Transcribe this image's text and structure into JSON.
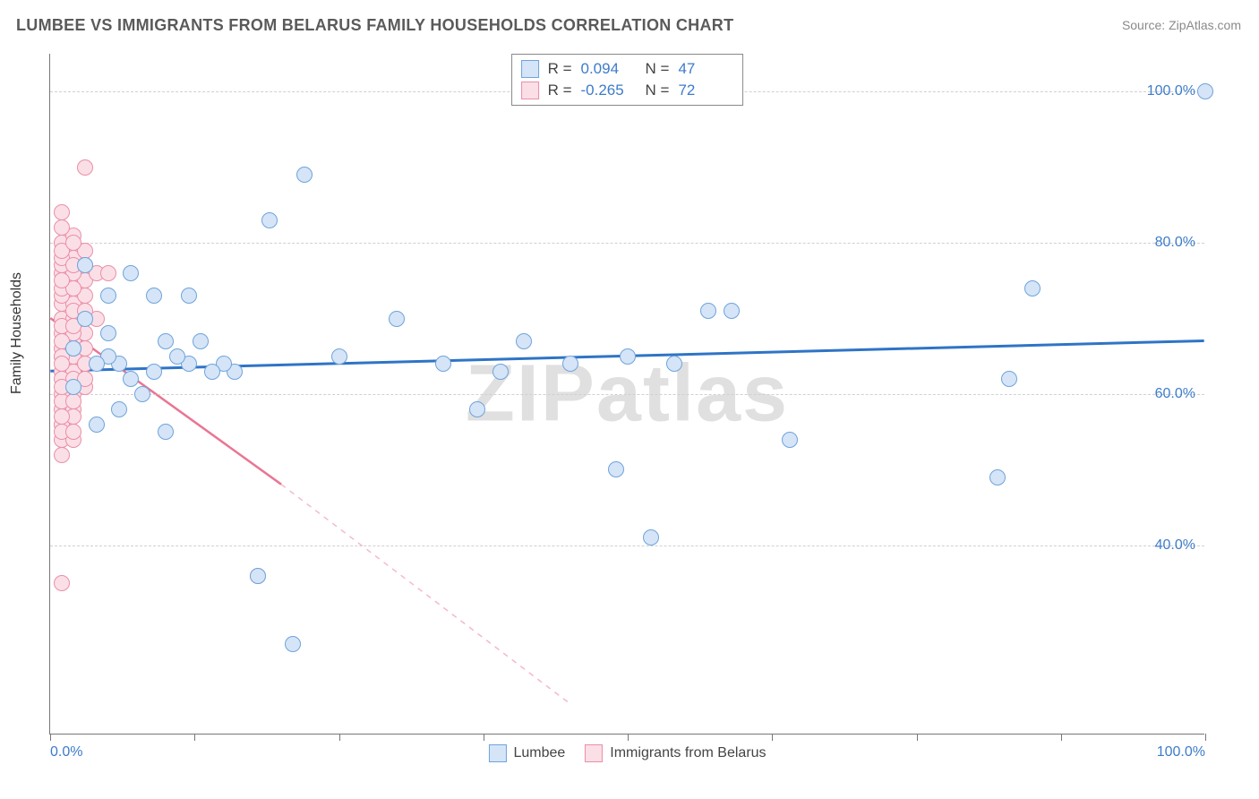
{
  "title": "LUMBEE VS IMMIGRANTS FROM BELARUS FAMILY HOUSEHOLDS CORRELATION CHART",
  "source_prefix": "Source: ",
  "source_name": "ZipAtlas.com",
  "ylabel": "Family Households",
  "watermark": "ZIPatlas",
  "chart": {
    "type": "scatter",
    "xlim": [
      0,
      100
    ],
    "ylim": [
      15,
      105
    ],
    "yticks": [
      40,
      60,
      80,
      100
    ],
    "ytick_labels": [
      "40.0%",
      "60.0%",
      "80.0%",
      "100.0%"
    ],
    "xticks": [
      0,
      12.5,
      25,
      37.5,
      50,
      62.5,
      75,
      87.5,
      100
    ],
    "xtick_labels_shown": {
      "0": "0.0%",
      "100": "100.0%"
    },
    "background_color": "#ffffff",
    "grid_color": "#d0d0d0",
    "marker_radius": 9,
    "marker_stroke_width": 1.5,
    "series": {
      "lumbee": {
        "label": "Lumbee",
        "fill": "#d5e5f7",
        "stroke": "#6fa3db",
        "R": "0.094",
        "N": "47",
        "trend": {
          "x1": 0,
          "y1": 63,
          "x2": 100,
          "y2": 67,
          "color": "#2f74c6",
          "width": 3,
          "dash": null
        },
        "points": [
          [
            100,
            100
          ],
          [
            85,
            74
          ],
          [
            83,
            62
          ],
          [
            82,
            49
          ],
          [
            64,
            54
          ],
          [
            57,
            71
          ],
          [
            59,
            71
          ],
          [
            54,
            64
          ],
          [
            5,
            68
          ],
          [
            50,
            65
          ],
          [
            52,
            41
          ],
          [
            49,
            50
          ],
          [
            41,
            67
          ],
          [
            39,
            63
          ],
          [
            34,
            64
          ],
          [
            30,
            70
          ],
          [
            25,
            65
          ],
          [
            21,
            27
          ],
          [
            19,
            83
          ],
          [
            22,
            89
          ],
          [
            18,
            36
          ],
          [
            16,
            63
          ],
          [
            15,
            64
          ],
          [
            14,
            63
          ],
          [
            13,
            67
          ],
          [
            12,
            73
          ],
          [
            12,
            64
          ],
          [
            11,
            65
          ],
          [
            10,
            55
          ],
          [
            10,
            67
          ],
          [
            9,
            73
          ],
          [
            9,
            63
          ],
          [
            8,
            60
          ],
          [
            7,
            62
          ],
          [
            7,
            76
          ],
          [
            6,
            58
          ],
          [
            6,
            64
          ],
          [
            5,
            73
          ],
          [
            5,
            65
          ],
          [
            4,
            64
          ],
          [
            4,
            56
          ],
          [
            3,
            70
          ],
          [
            3,
            77
          ],
          [
            2,
            61
          ],
          [
            2,
            66
          ],
          [
            37,
            58
          ],
          [
            45,
            64
          ]
        ]
      },
      "belarus": {
        "label": "Immigrants from Belarus",
        "fill": "#fbdfe6",
        "stroke": "#ea8fa8",
        "R": "-0.265",
        "N": "72",
        "trend_solid": {
          "x1": 0,
          "y1": 70,
          "x2": 20,
          "y2": 48,
          "color": "#e97693",
          "width": 2.5
        },
        "trend_dashed": {
          "x1": 20,
          "y1": 48,
          "x2": 45,
          "y2": 19,
          "color": "#f5b9c7",
          "width": 1.5,
          "dash": "6,6"
        },
        "points": [
          [
            1,
            35
          ],
          [
            18,
            36
          ],
          [
            1,
            54
          ],
          [
            1,
            56
          ],
          [
            1,
            58
          ],
          [
            2,
            60
          ],
          [
            2,
            62
          ],
          [
            1,
            63
          ],
          [
            2,
            64
          ],
          [
            1,
            65
          ],
          [
            2,
            65
          ],
          [
            1,
            66
          ],
          [
            2,
            67
          ],
          [
            1,
            68
          ],
          [
            3,
            68
          ],
          [
            1,
            70
          ],
          [
            2,
            70
          ],
          [
            1,
            72
          ],
          [
            2,
            72
          ],
          [
            1,
            73
          ],
          [
            3,
            73
          ],
          [
            1,
            74
          ],
          [
            2,
            75
          ],
          [
            3,
            75
          ],
          [
            1,
            76
          ],
          [
            2,
            76
          ],
          [
            4,
            76
          ],
          [
            5,
            76
          ],
          [
            1,
            77
          ],
          [
            2,
            78
          ],
          [
            1,
            78
          ],
          [
            3,
            79
          ],
          [
            1,
            80
          ],
          [
            2,
            81
          ],
          [
            1,
            84
          ],
          [
            4,
            70
          ],
          [
            3,
            90
          ],
          [
            1,
            65
          ],
          [
            2,
            63
          ],
          [
            1,
            62
          ],
          [
            3,
            64
          ],
          [
            1,
            60
          ],
          [
            2,
            58
          ],
          [
            1,
            56
          ],
          [
            2,
            54
          ],
          [
            1,
            52
          ],
          [
            2,
            68
          ],
          [
            3,
            66
          ],
          [
            1,
            64
          ],
          [
            2,
            62
          ],
          [
            1,
            59
          ],
          [
            3,
            61
          ],
          [
            2,
            57
          ],
          [
            1,
            55
          ],
          [
            2,
            71
          ],
          [
            1,
            69
          ],
          [
            3,
            71
          ],
          [
            2,
            74
          ],
          [
            1,
            75
          ],
          [
            2,
            77
          ],
          [
            1,
            79
          ],
          [
            3,
            77
          ],
          [
            2,
            80
          ],
          [
            1,
            82
          ],
          [
            2,
            66
          ],
          [
            3,
            62
          ],
          [
            1,
            61
          ],
          [
            2,
            59
          ],
          [
            1,
            57
          ],
          [
            2,
            55
          ],
          [
            1,
            67
          ],
          [
            2,
            69
          ]
        ]
      }
    }
  },
  "legend_top": {
    "r_label": "R =",
    "n_label": "N ="
  }
}
